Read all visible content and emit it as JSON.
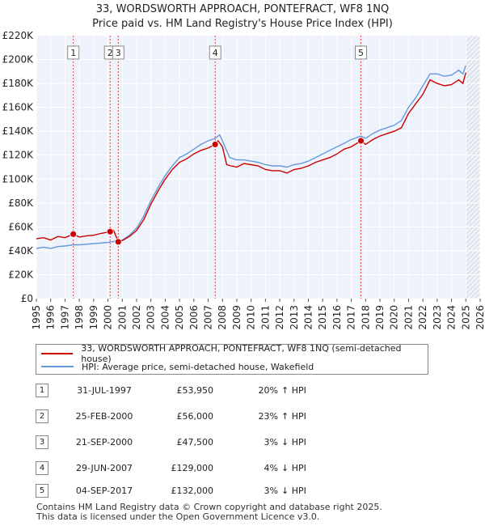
{
  "header": {
    "title_line1": "33, WORDSWORTH APPROACH, PONTEFRACT, WF8 1NQ",
    "title_line2": "Price paid vs. HM Land Registry's House Price Index (HPI)"
  },
  "colors": {
    "price_line": "#cc0000",
    "hpi_line": "#6699dd",
    "grid": "#dddddd",
    "plot_bg": "#eef2fa",
    "marker_line": "#dd4444"
  },
  "chart_data": {
    "type": "line",
    "title": "33, WORDSWORTH APPROACH, PONTEFRACT, WF8 1NQ — Price paid vs. HM Land Registry's House Price Index (HPI)",
    "xlabel": "",
    "ylabel": "",
    "xlim": [
      1995,
      2026
    ],
    "ylim": [
      0,
      220000
    ],
    "y_ticks": [
      0,
      20000,
      40000,
      60000,
      80000,
      100000,
      120000,
      140000,
      160000,
      180000,
      200000,
      220000
    ],
    "y_tick_labels": [
      "£0",
      "£20K",
      "£40K",
      "£60K",
      "£80K",
      "£100K",
      "£120K",
      "£140K",
      "£160K",
      "£180K",
      "£200K",
      "£220K"
    ],
    "x_ticks": [
      1995,
      1996,
      1997,
      1998,
      1999,
      2000,
      2001,
      2002,
      2003,
      2004,
      2005,
      2006,
      2007,
      2008,
      2009,
      2010,
      2011,
      2012,
      2013,
      2014,
      2015,
      2016,
      2017,
      2018,
      2019,
      2020,
      2021,
      2022,
      2023,
      2024,
      2025,
      2026
    ],
    "x_tick_labels": [
      "1995",
      "1996",
      "1997",
      "1998",
      "1999",
      "2000",
      "2001",
      "2002",
      "2003",
      "2004",
      "2005",
      "2006",
      "2007",
      "2008",
      "2009",
      "2010",
      "2011",
      "2012",
      "2013",
      "2014",
      "2015",
      "2016",
      "2017",
      "2018",
      "2019",
      "2020",
      "2021",
      "2022",
      "2023",
      "2024",
      "2025",
      "2026"
    ],
    "grid": true,
    "future_hatch_from": 2025.0,
    "series": [
      {
        "name": "33, WORDSWORTH APPROACH, PONTEFRACT, WF8 1NQ (semi-detached house)",
        "color": "#cc0000",
        "x": [
          1995.0,
          1995.5,
          1996.0,
          1996.5,
          1997.0,
          1997.58,
          1998.0,
          1998.5,
          1999.0,
          1999.5,
          2000.15,
          2000.4,
          2000.72,
          2001.0,
          2001.5,
          2002.0,
          2002.5,
          2003.0,
          2003.5,
          2004.0,
          2004.5,
          2005.0,
          2005.5,
          2006.0,
          2006.5,
          2007.0,
          2007.49,
          2007.7,
          2008.0,
          2008.3,
          2008.6,
          2009.0,
          2009.5,
          2010.0,
          2010.5,
          2011.0,
          2011.5,
          2012.0,
          2012.5,
          2013.0,
          2013.5,
          2014.0,
          2014.5,
          2015.0,
          2015.5,
          2016.0,
          2016.5,
          2017.0,
          2017.67,
          2018.0,
          2018.5,
          2019.0,
          2019.5,
          2020.0,
          2020.5,
          2021.0,
          2021.5,
          2022.0,
          2022.5,
          2023.0,
          2023.5,
          2024.0,
          2024.5,
          2024.8,
          2025.0
        ],
        "values": [
          50000,
          51000,
          49000,
          52000,
          51000,
          53950,
          51500,
          52500,
          53000,
          54500,
          56000,
          57000,
          47500,
          48500,
          52000,
          57000,
          66000,
          79000,
          90000,
          100000,
          108000,
          114000,
          117000,
          121000,
          124000,
          126000,
          129000,
          132000,
          127000,
          112000,
          111000,
          110000,
          113000,
          112000,
          111000,
          108000,
          107000,
          107000,
          105000,
          108000,
          109000,
          111000,
          114000,
          116000,
          118000,
          121000,
          125000,
          127000,
          132000,
          129000,
          133000,
          136000,
          138000,
          140000,
          143000,
          155000,
          163000,
          171000,
          183000,
          180000,
          178000,
          179000,
          183000,
          180000,
          189000
        ]
      },
      {
        "name": "HPI: Average price, semi-detached house, Wakefield",
        "color": "#6699dd",
        "x": [
          1995.0,
          1995.5,
          1996.0,
          1996.5,
          1997.0,
          1997.58,
          1998.0,
          1998.5,
          1999.0,
          1999.5,
          2000.0,
          2000.5,
          2001.0,
          2001.5,
          2002.0,
          2002.5,
          2003.0,
          2003.5,
          2004.0,
          2004.5,
          2005.0,
          2005.5,
          2006.0,
          2006.5,
          2007.0,
          2007.49,
          2007.8,
          2008.0,
          2008.5,
          2009.0,
          2009.5,
          2010.0,
          2010.5,
          2011.0,
          2011.5,
          2012.0,
          2012.5,
          2013.0,
          2013.5,
          2014.0,
          2014.5,
          2015.0,
          2015.5,
          2016.0,
          2016.5,
          2017.0,
          2017.67,
          2018.0,
          2018.5,
          2019.0,
          2019.5,
          2020.0,
          2020.5,
          2021.0,
          2021.5,
          2022.0,
          2022.5,
          2023.0,
          2023.5,
          2024.0,
          2024.5,
          2024.8,
          2025.0
        ],
        "values": [
          42000,
          43000,
          42000,
          43500,
          44000,
          45000,
          45000,
          45500,
          46000,
          46500,
          47000,
          48000,
          49000,
          53000,
          59000,
          69000,
          82000,
          93000,
          103000,
          111000,
          118000,
          121000,
          125000,
          129000,
          132000,
          134000,
          137000,
          132000,
          118000,
          116000,
          116000,
          115000,
          114000,
          112000,
          111000,
          111000,
          110000,
          112000,
          113000,
          115000,
          118000,
          121000,
          124000,
          127000,
          130000,
          133000,
          136000,
          134000,
          138000,
          141000,
          143000,
          145000,
          149000,
          160000,
          168000,
          178000,
          188000,
          188000,
          186000,
          187000,
          191000,
          188000,
          195000
        ]
      }
    ],
    "annotations": [
      {
        "label": "1",
        "x": 1997.58,
        "y": 53950
      },
      {
        "label": "2",
        "x": 2000.15,
        "y": 56000
      },
      {
        "label": "3",
        "x": 2000.72,
        "y": 47500
      },
      {
        "label": "4",
        "x": 2007.49,
        "y": 129000
      },
      {
        "label": "5",
        "x": 2017.67,
        "y": 132000
      }
    ]
  },
  "legend": {
    "price_label": "33, WORDSWORTH APPROACH, PONTEFRACT, WF8 1NQ (semi-detached house)",
    "hpi_label": "HPI: Average price, semi-detached house, Wakefield"
  },
  "transactions": [
    {
      "num": "1",
      "date": "31-JUL-1997",
      "price": "£53,950",
      "pct": "20%",
      "dir": "↑ HPI"
    },
    {
      "num": "2",
      "date": "25-FEB-2000",
      "price": "£56,000",
      "pct": "23%",
      "dir": "↑ HPI"
    },
    {
      "num": "3",
      "date": "21-SEP-2000",
      "price": "£47,500",
      "pct": "3%",
      "dir": "↓ HPI"
    },
    {
      "num": "4",
      "date": "29-JUN-2007",
      "price": "£129,000",
      "pct": "4%",
      "dir": "↓ HPI"
    },
    {
      "num": "5",
      "date": "04-SEP-2017",
      "price": "£132,000",
      "pct": "3%",
      "dir": "↓ HPI"
    }
  ],
  "footer": {
    "line1": "Contains HM Land Registry data © Crown copyright and database right 2025.",
    "line2": "This data is licensed under the Open Government Licence v3.0."
  }
}
